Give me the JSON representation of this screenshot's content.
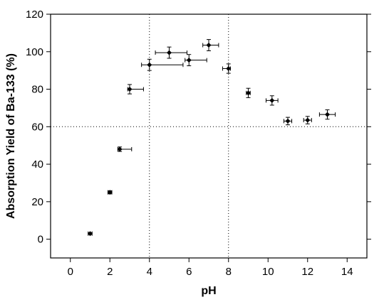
{
  "chart_data": {
    "type": "scatter",
    "xlabel": "pH",
    "ylabel": "Absorption Yield of Ba-133 (%)",
    "xlim": [
      -1,
      15
    ],
    "ylim": [
      -10,
      120
    ],
    "xticks": [
      0,
      2,
      4,
      6,
      8,
      10,
      12,
      14
    ],
    "yticks": [
      0,
      20,
      40,
      60,
      80,
      100,
      120
    ],
    "grid": "dotted reference lines at x=4, x=8 and y=60",
    "reference_lines": {
      "x": [
        4,
        8
      ],
      "y": [
        60
      ]
    },
    "points": [
      {
        "x": 1.0,
        "y": 3,
        "xerr_minus": 0.1,
        "xerr_plus": 0.1,
        "yerr": 0.5
      },
      {
        "x": 2.0,
        "y": 25,
        "xerr_minus": 0.1,
        "xerr_plus": 0.1,
        "yerr": 0.8
      },
      {
        "x": 2.5,
        "y": 48,
        "xerr_minus": 0.1,
        "xerr_plus": 0.6,
        "yerr": 1.2
      },
      {
        "x": 3.0,
        "y": 80,
        "xerr_minus": 0.1,
        "xerr_plus": 0.7,
        "yerr": 2.5
      },
      {
        "x": 4.0,
        "y": 93,
        "xerr_minus": 0.4,
        "xerr_plus": 1.7,
        "yerr": 3
      },
      {
        "x": 5.0,
        "y": 99.5,
        "xerr_minus": 0.7,
        "xerr_plus": 0.9,
        "yerr": 3
      },
      {
        "x": 6.0,
        "y": 95.5,
        "xerr_minus": 0.2,
        "xerr_plus": 0.9,
        "yerr": 3
      },
      {
        "x": 7.0,
        "y": 103.5,
        "xerr_minus": 0.3,
        "xerr_plus": 0.5,
        "yerr": 3
      },
      {
        "x": 8.0,
        "y": 91,
        "xerr_minus": 0.3,
        "xerr_plus": 0.1,
        "yerr": 2.5
      },
      {
        "x": 9.0,
        "y": 78,
        "xerr_minus": 0.1,
        "xerr_plus": 0.1,
        "yerr": 2.5
      },
      {
        "x": 10.2,
        "y": 74,
        "xerr_minus": 0.3,
        "xerr_plus": 0.3,
        "yerr": 2.5
      },
      {
        "x": 11.0,
        "y": 63,
        "xerr_minus": 0.2,
        "xerr_plus": 0.2,
        "yerr": 2
      },
      {
        "x": 12.0,
        "y": 63.5,
        "xerr_minus": 0.2,
        "xerr_plus": 0.2,
        "yerr": 2
      },
      {
        "x": 13.0,
        "y": 66.5,
        "xerr_minus": 0.4,
        "xerr_plus": 0.4,
        "yerr": 2.5
      }
    ]
  }
}
